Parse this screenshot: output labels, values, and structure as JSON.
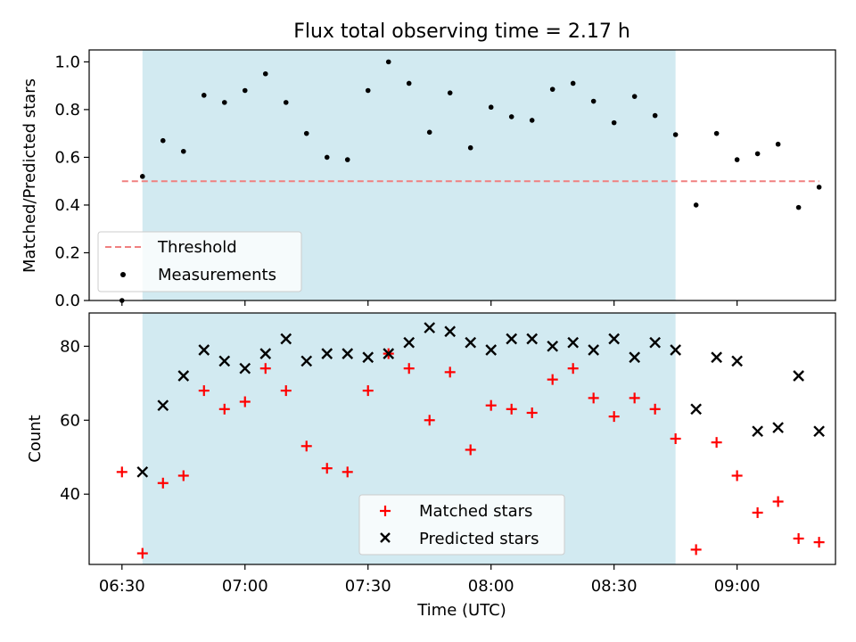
{
  "chart_data": [
    {
      "type": "scatter",
      "title": "Flux total observing time = 2.17 h",
      "xlabel": "",
      "ylabel": "Matched/Predicted stars",
      "ylim": [
        0,
        1.05
      ],
      "yticks": [
        "0.0",
        "0.2",
        "0.4",
        "0.6",
        "0.8",
        "1.0"
      ],
      "ytick_values": [
        0,
        0.2,
        0.4,
        0.6,
        0.8,
        1.0
      ],
      "legend_position": "lower-left",
      "shaded_interval": [
        "06:35",
        "08:45"
      ],
      "shaded_color": "#add8e6",
      "threshold": {
        "name": "Threshold",
        "value": 0.5,
        "x_range": [
          "06:30",
          "09:20"
        ],
        "color": "#f08080"
      },
      "series": [
        {
          "name": "Measurements",
          "color": "#000000",
          "marker": "dot",
          "x": [
            "06:30",
            "06:35",
            "06:40",
            "06:45",
            "06:50",
            "06:55",
            "07:00",
            "07:05",
            "07:10",
            "07:15",
            "07:20",
            "07:25",
            "07:30",
            "07:35",
            "07:40",
            "07:45",
            "07:50",
            "07:55",
            "08:00",
            "08:05",
            "08:10",
            "08:15",
            "08:20",
            "08:25",
            "08:30",
            "08:35",
            "08:40",
            "08:45",
            "08:50",
            "08:55",
            "09:00",
            "09:05",
            "09:10",
            "09:15",
            "09:20"
          ],
          "y": [
            0.0,
            0.52,
            0.67,
            0.625,
            0.86,
            0.83,
            0.88,
            0.95,
            0.83,
            0.7,
            0.6,
            0.59,
            0.88,
            1.0,
            0.91,
            0.705,
            0.87,
            0.64,
            0.81,
            0.77,
            0.755,
            0.885,
            0.91,
            0.835,
            0.745,
            0.855,
            0.775,
            0.695,
            0.4,
            0.7,
            0.59,
            0.615,
            0.655,
            0.39,
            0.475
          ]
        }
      ]
    },
    {
      "type": "scatter",
      "xlabel": "Time (UTC)",
      "ylabel": "Count",
      "ylim": [
        21,
        89
      ],
      "yticks": [
        "40",
        "60",
        "80"
      ],
      "ytick_values": [
        40,
        60,
        80
      ],
      "xticks": [
        "06:30",
        "07:00",
        "07:30",
        "08:00",
        "08:30",
        "09:00"
      ],
      "legend_position": "lower-center",
      "shaded_interval": [
        "06:35",
        "08:45"
      ],
      "shaded_color": "#add8e6",
      "series": [
        {
          "name": "Matched stars",
          "color": "#ff0000",
          "marker": "plus",
          "x": [
            "06:30",
            "06:35",
            "06:40",
            "06:45",
            "06:50",
            "06:55",
            "07:00",
            "07:05",
            "07:10",
            "07:15",
            "07:20",
            "07:25",
            "07:30",
            "07:35",
            "07:40",
            "07:45",
            "07:50",
            "07:55",
            "08:00",
            "08:05",
            "08:10",
            "08:15",
            "08:20",
            "08:25",
            "08:30",
            "08:35",
            "08:40",
            "08:45",
            "08:50",
            "08:55",
            "09:00",
            "09:05",
            "09:10",
            "09:15",
            "09:20"
          ],
          "y": [
            46,
            24,
            43,
            45,
            68,
            63,
            65,
            74,
            68,
            53,
            47,
            46,
            68,
            78,
            74,
            60,
            73,
            52,
            64,
            63,
            62,
            71,
            74,
            66,
            61,
            66,
            63,
            55,
            25,
            54,
            45,
            35,
            38,
            28,
            27
          ]
        },
        {
          "name": "Predicted stars",
          "color": "#000000",
          "marker": "x",
          "x": [
            "06:35",
            "06:40",
            "06:45",
            "06:50",
            "06:55",
            "07:00",
            "07:05",
            "07:10",
            "07:15",
            "07:20",
            "07:25",
            "07:30",
            "07:35",
            "07:40",
            "07:45",
            "07:50",
            "07:55",
            "08:00",
            "08:05",
            "08:10",
            "08:15",
            "08:20",
            "08:25",
            "08:30",
            "08:35",
            "08:40",
            "08:45",
            "08:50",
            "08:55",
            "09:00",
            "09:05",
            "09:10",
            "09:15",
            "09:20"
          ],
          "y": [
            46,
            64,
            72,
            79,
            76,
            74,
            78,
            82,
            76,
            78,
            78,
            77,
            78,
            81,
            85,
            84,
            81,
            79,
            82,
            82,
            80,
            81,
            79,
            82,
            77,
            81,
            79,
            63,
            77,
            76,
            57,
            58,
            72,
            57
          ]
        }
      ]
    }
  ]
}
